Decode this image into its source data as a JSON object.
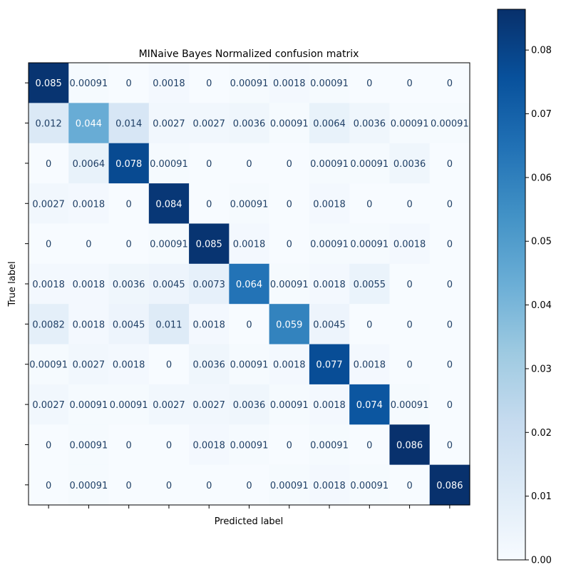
{
  "chart_data": {
    "type": "heatmap",
    "title": "MINaive Bayes Normalized confusion matrix",
    "xlabel": "Predicted label",
    "ylabel": "True label",
    "rows": 11,
    "cols": 11,
    "x_tick_labels": [],
    "y_tick_labels": [],
    "values": [
      [
        0.085,
        0.00091,
        0,
        0.0018,
        0,
        0.00091,
        0.0018,
        0.00091,
        0,
        0,
        0
      ],
      [
        0.012,
        0.044,
        0.014,
        0.0027,
        0.0027,
        0.0036,
        0.00091,
        0.0064,
        0.0036,
        0.00091,
        0.00091
      ],
      [
        0,
        0.0064,
        0.078,
        0.00091,
        0,
        0,
        0,
        0.00091,
        0.00091,
        0.0036,
        0
      ],
      [
        0.0027,
        0.0018,
        0,
        0.084,
        0,
        0.00091,
        0,
        0.0018,
        0,
        0,
        0
      ],
      [
        0,
        0,
        0,
        0.00091,
        0.085,
        0.0018,
        0,
        0.00091,
        0.00091,
        0.0018,
        0
      ],
      [
        0.0018,
        0.0018,
        0.0036,
        0.0045,
        0.0073,
        0.064,
        0.00091,
        0.0018,
        0.0055,
        0,
        0
      ],
      [
        0.0082,
        0.0018,
        0.0045,
        0.011,
        0.0018,
        0,
        0.059,
        0.0045,
        0,
        0,
        0
      ],
      [
        0.00091,
        0.0027,
        0.0018,
        0,
        0.0036,
        0.00091,
        0.0018,
        0.077,
        0.0018,
        0,
        0
      ],
      [
        0.0027,
        0.00091,
        0.00091,
        0.0027,
        0.0027,
        0.0036,
        0.00091,
        0.0018,
        0.074,
        0.00091,
        0
      ],
      [
        0,
        0.00091,
        0,
        0,
        0.0018,
        0.00091,
        0,
        0.00091,
        0,
        0.086,
        0
      ],
      [
        0,
        0.00091,
        0,
        0,
        0,
        0,
        0.00091,
        0.0018,
        0.00091,
        0,
        0.086
      ]
    ],
    "colormap": "Blues",
    "vmin": 0,
    "vmax": 0.0864,
    "colorbar": {
      "ticks": [
        0,
        0.01,
        0.02,
        0.03,
        0.04,
        0.05,
        0.06,
        0.07,
        0.08
      ],
      "tick_labels": [
        "0.00",
        "0.01",
        "0.02",
        "0.03",
        "0.04",
        "0.05",
        "0.06",
        "0.07",
        "0.08"
      ]
    },
    "grid": false
  }
}
